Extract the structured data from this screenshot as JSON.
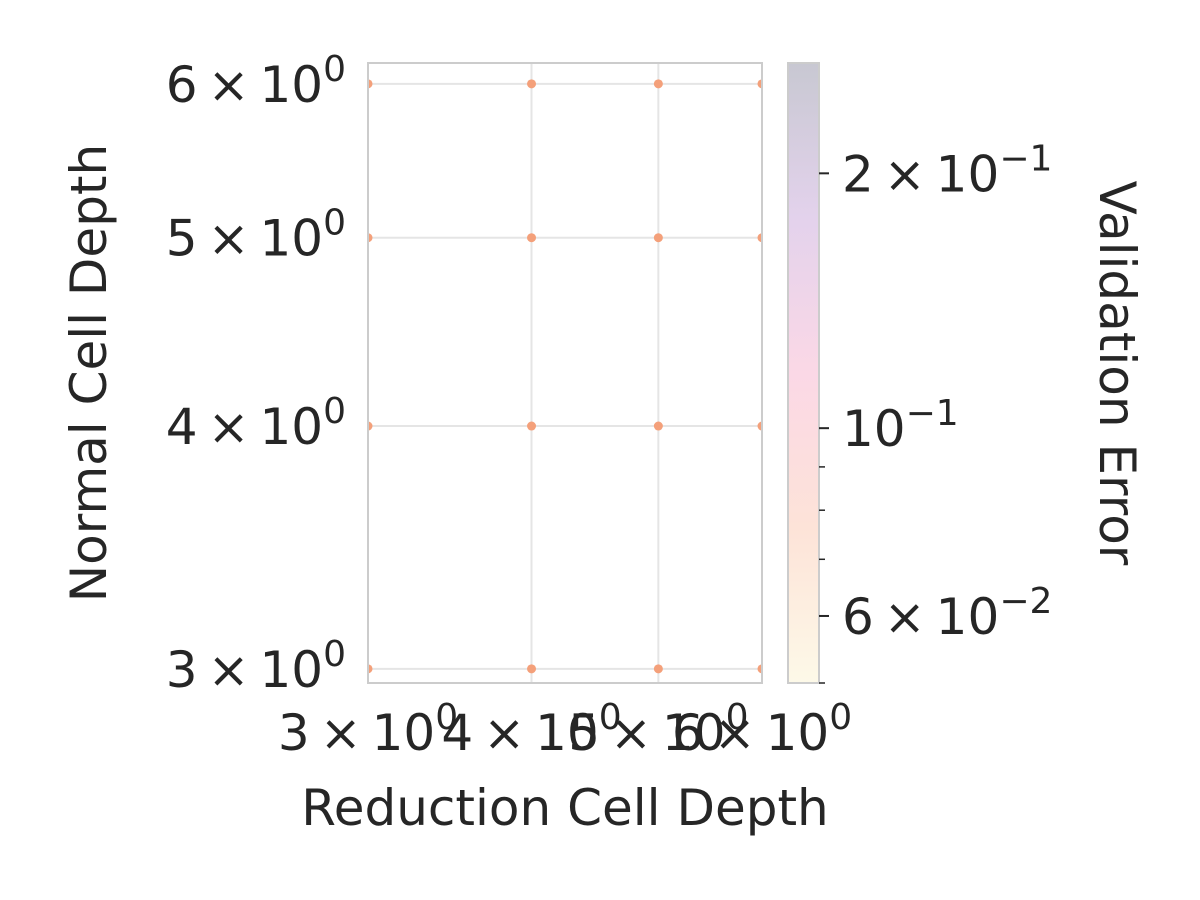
{
  "chart_data": {
    "type": "scatter",
    "xlabel": "Reduction Cell Depth",
    "ylabel": "Normal Cell Depth",
    "x_scale": "log",
    "y_scale": "log",
    "xlim": [
      3,
      6
    ],
    "ylim": [
      2.95,
      6.15
    ],
    "grid": true,
    "x_ticks": [
      {
        "value": 3,
        "mantissa": "3",
        "base": "10",
        "exp": "0"
      },
      {
        "value": 4,
        "mantissa": "4",
        "base": "10",
        "exp": "0"
      },
      {
        "value": 5,
        "mantissa": "5",
        "base": "10",
        "exp": "0"
      },
      {
        "value": 6,
        "mantissa": "6",
        "base": "10",
        "exp": "0"
      }
    ],
    "y_ticks": [
      {
        "value": 3,
        "mantissa": "3",
        "base": "10",
        "exp": "0"
      },
      {
        "value": 4,
        "mantissa": "4",
        "base": "10",
        "exp": "0"
      },
      {
        "value": 5,
        "mantissa": "5",
        "base": "10",
        "exp": "0"
      },
      {
        "value": 6,
        "mantissa": "6",
        "base": "10",
        "exp": "0"
      }
    ],
    "points": [
      {
        "x": 3,
        "y": 3
      },
      {
        "x": 4,
        "y": 3
      },
      {
        "x": 5,
        "y": 3
      },
      {
        "x": 6,
        "y": 3
      },
      {
        "x": 3,
        "y": 4
      },
      {
        "x": 4,
        "y": 4
      },
      {
        "x": 5,
        "y": 4
      },
      {
        "x": 6,
        "y": 4
      },
      {
        "x": 3,
        "y": 5
      },
      {
        "x": 4,
        "y": 5
      },
      {
        "x": 5,
        "y": 5
      },
      {
        "x": 6,
        "y": 5
      },
      {
        "x": 3,
        "y": 6
      },
      {
        "x": 4,
        "y": 6
      },
      {
        "x": 5,
        "y": 6
      },
      {
        "x": 6,
        "y": 6
      }
    ],
    "point_color": "#f4a07a",
    "colorbar": {
      "label": "Validation Error",
      "scale": "log",
      "range": [
        0.05,
        0.27
      ],
      "colors": [
        "#fdf9e8",
        "#fde3d8",
        "#fbd8e6",
        "#e3d2ec",
        "#c8c8d2"
      ],
      "major_ticks": [
        {
          "value": 0.06,
          "mantissa": "6",
          "base": "10",
          "exp": "−2"
        },
        {
          "value": 0.1,
          "mantissa": "",
          "base": "10",
          "exp": "−1"
        },
        {
          "value": 0.2,
          "mantissa": "2",
          "base": "10",
          "exp": "−1"
        }
      ],
      "minor_ticks": [
        0.05,
        0.07,
        0.08,
        0.09
      ]
    }
  }
}
